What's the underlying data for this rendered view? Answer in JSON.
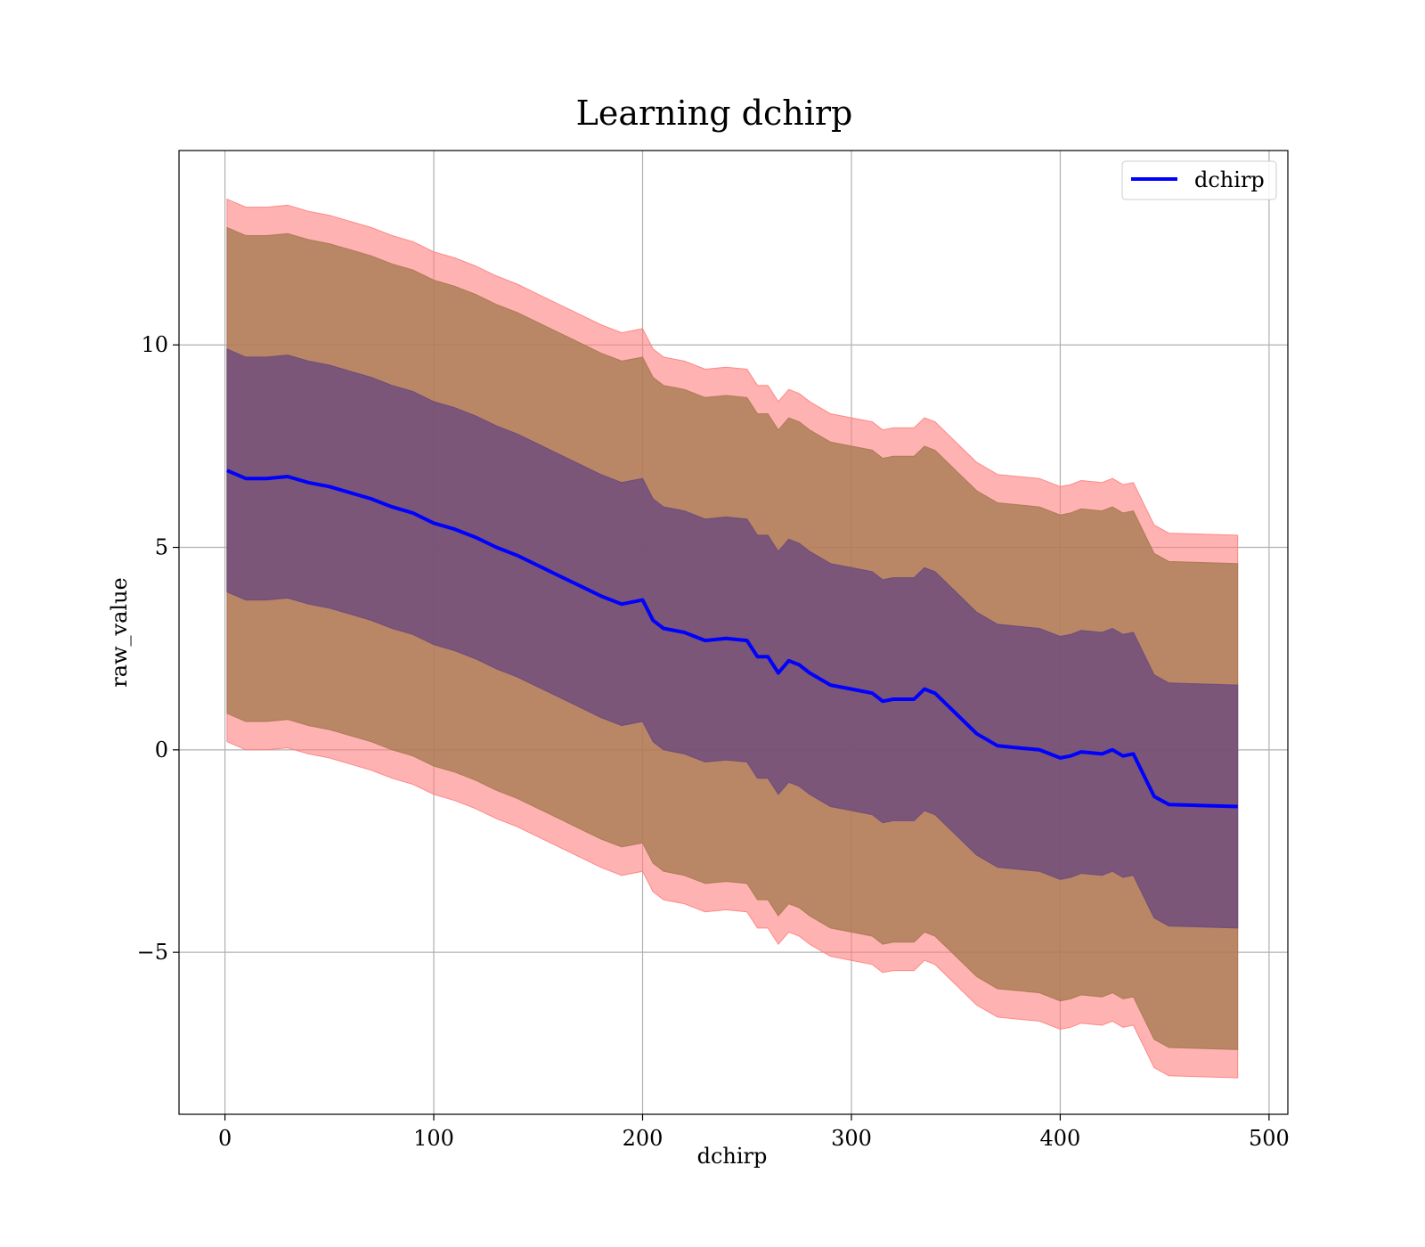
{
  "chart_data": {
    "type": "area",
    "title": "Learning dchirp",
    "xlabel": "dchirp",
    "ylabel": "raw_value",
    "xlim": [
      -22,
      509
    ],
    "ylim": [
      -9.0,
      14.8
    ],
    "xticks": [
      0,
      100,
      200,
      300,
      400,
      500
    ],
    "xtick_labels": [
      "0",
      "100",
      "200",
      "300",
      "400",
      "500"
    ],
    "yticks": [
      -5,
      0,
      5,
      10
    ],
    "ytick_labels": [
      "−5",
      "0",
      "5",
      "10"
    ],
    "grid": true,
    "legend": {
      "position": "upper-right",
      "entries": [
        "dchirp"
      ]
    },
    "colors": {
      "line": "#0000ff",
      "band_outer": "#ff7f7f",
      "band_mid": "#a87a52",
      "band_inner": "#6b4a7d",
      "grid": "#b0b0b0"
    },
    "series": [
      {
        "name": "dchirp",
        "x": [
          1,
          10,
          20,
          30,
          40,
          50,
          60,
          70,
          80,
          90,
          100,
          110,
          120,
          130,
          140,
          150,
          160,
          170,
          180,
          190,
          200,
          205,
          210,
          220,
          230,
          240,
          250,
          255,
          260,
          265,
          270,
          275,
          280,
          290,
          300,
          310,
          315,
          320,
          330,
          335,
          340,
          350,
          360,
          370,
          380,
          390,
          400,
          405,
          410,
          420,
          425,
          430,
          435,
          445,
          452,
          485
        ],
        "mean": [
          6.9,
          6.7,
          6.7,
          6.75,
          6.6,
          6.5,
          6.35,
          6.2,
          6.0,
          5.85,
          5.6,
          5.45,
          5.25,
          5.0,
          4.8,
          4.55,
          4.3,
          4.05,
          3.8,
          3.6,
          3.7,
          3.2,
          3.0,
          2.9,
          2.7,
          2.75,
          2.7,
          2.3,
          2.3,
          1.9,
          2.2,
          2.1,
          1.9,
          1.6,
          1.5,
          1.4,
          1.2,
          1.25,
          1.25,
          1.5,
          1.4,
          0.9,
          0.4,
          0.1,
          0.05,
          0.0,
          -0.2,
          -0.15,
          -0.05,
          -0.1,
          0.0,
          -0.15,
          -0.1,
          -1.15,
          -1.35,
          -1.4
        ]
      }
    ],
    "bands": [
      {
        "name": "inner",
        "half_width": 3.0
      },
      {
        "name": "middle",
        "half_width": 6.0
      },
      {
        "name": "outer",
        "half_width": 6.7
      }
    ]
  }
}
